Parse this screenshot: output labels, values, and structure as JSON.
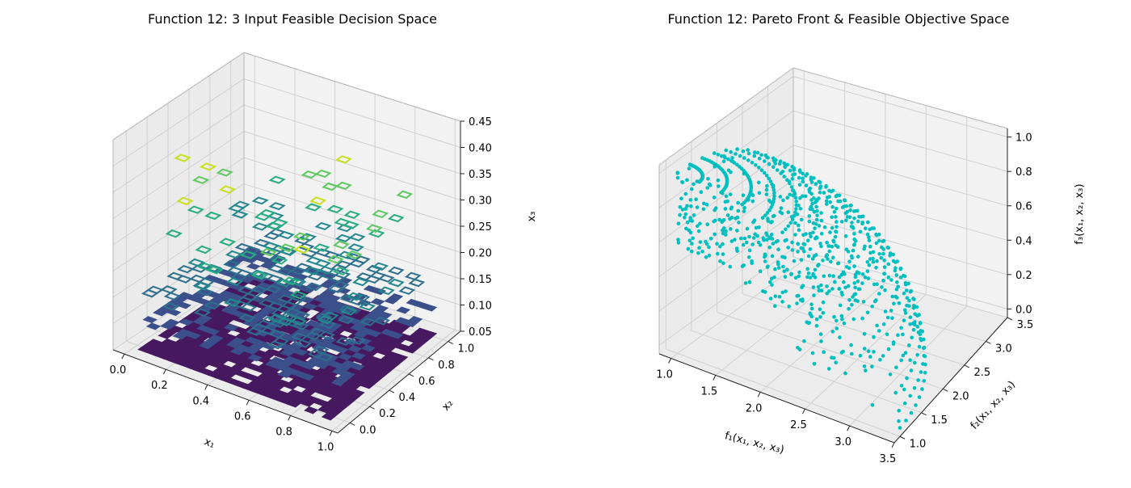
{
  "chart_data": [
    {
      "type": "3d-contour",
      "title": "Function 12: 3 Input Feasible Decision Space",
      "xlabel": "x₁",
      "ylabel": "x₂",
      "zlabel": "x₃",
      "xlim": [
        0.0,
        1.0
      ],
      "ylim": [
        0.0,
        1.0
      ],
      "zlim": [
        0.05,
        0.45
      ],
      "xticks": [
        "0.0",
        "0.2",
        "0.4",
        "0.6",
        "0.8",
        "1.0"
      ],
      "yticks": [
        "0.0",
        "0.2",
        "0.4",
        "0.6",
        "0.8",
        "1.0"
      ],
      "zticks": [
        "0.05",
        "0.10",
        "0.15",
        "0.20",
        "0.25",
        "0.30",
        "0.35",
        "0.40",
        "0.45"
      ],
      "grid": true,
      "colormap": "viridis",
      "colors": [
        "#46185f",
        "#3b4f8b",
        "#2e6f8e",
        "#23898e",
        "#27ad81",
        "#5ec962",
        "#c8e020"
      ],
      "layers": [
        {
          "x3": 0.05,
          "fill": 0.85
        },
        {
          "x3": 0.1,
          "fill": 0.45
        },
        {
          "x3": 0.15,
          "fill": 0.22
        },
        {
          "x3": 0.2,
          "fill": 0.1
        },
        {
          "x3": 0.25,
          "fill": 0.06
        },
        {
          "x3": 0.3,
          "fill": 0.03
        },
        {
          "x3": 0.35,
          "fill": 0.015
        },
        {
          "x3": 0.4,
          "fill": 0.005
        }
      ]
    },
    {
      "type": "3d-scatter",
      "title": "Function 12: Pareto Front & Feasible Objective Space",
      "xlabel": "f₁(x₁, x₂, x₃)",
      "ylabel": "f₂(x₁, x₂, x₃)",
      "zlabel": "f₃(x₁, x₂, x₃)",
      "xlim": [
        0.9,
        3.55
      ],
      "ylim": [
        0.9,
        3.55
      ],
      "zlim": [
        -0.05,
        1.05
      ],
      "xticks": [
        "1.0",
        "1.5",
        "2.0",
        "2.5",
        "3.0",
        "3.5"
      ],
      "yticks": [
        "1.0",
        "1.5",
        "2.0",
        "2.5",
        "3.0",
        "3.5"
      ],
      "zticks": [
        "0.0",
        "0.2",
        "0.4",
        "0.6",
        "0.8",
        "1.0"
      ],
      "grid": true,
      "marker_color": "#00bfbf",
      "shape": "quarter-sphere shell",
      "radius_range": [
        1.0,
        2.5
      ],
      "f3_range": [
        0.0,
        1.0
      ]
    }
  ]
}
